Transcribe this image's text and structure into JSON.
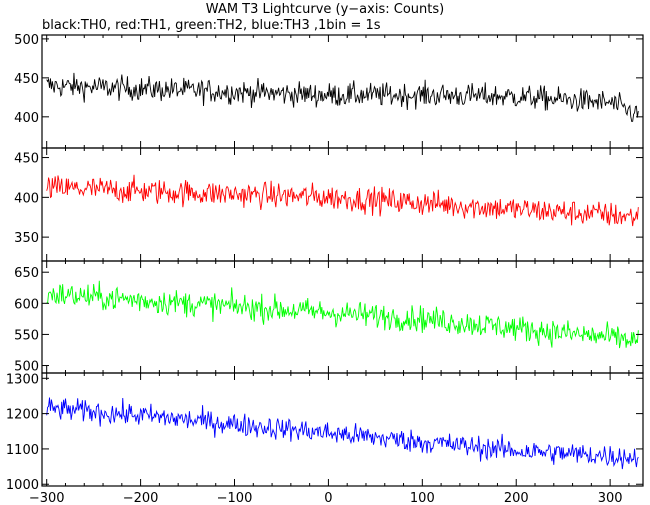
{
  "title": "WAM T3 Lightcurve (y−axis: Counts)",
  "subtitle": "black:TH0, red:TH1, green:TH2, blue:TH3 ,1bin = 1s",
  "chart_data": {
    "type": "line",
    "title": "WAM T3 Lightcurve (y−axis: Counts)",
    "subtitle": "black:TH0, red:TH1, green:TH2, blue:TH3 ,1bin = 1s",
    "ylabel": "Counts",
    "bin_seconds": 1,
    "xlim": [
      -305,
      335
    ],
    "x_ticks": [
      -300,
      -200,
      -100,
      0,
      100,
      200,
      300
    ],
    "x_tick_labels": [
      "−300",
      "−200",
      "−100",
      "0",
      "100",
      "200",
      "300"
    ],
    "panels": [
      {
        "name": "TH0",
        "color": "#000000",
        "ylim": [
          360,
          505
        ],
        "y_ticks": [
          400,
          450,
          500
        ],
        "y_tick_labels": [
          "400",
          "450",
          "500"
        ],
        "trend": {
          "x": [
            -300,
            -200,
            -100,
            0,
            100,
            200,
            300,
            330
          ],
          "y": [
            440,
            436,
            432,
            428,
            428,
            426,
            418,
            402
          ]
        },
        "noise_amplitude": 20
      },
      {
        "name": "TH1",
        "color": "#ff0000",
        "ylim": [
          320,
          462
        ],
        "y_ticks": [
          350,
          400,
          450
        ],
        "y_tick_labels": [
          "350",
          "400",
          "450"
        ],
        "trend": {
          "x": [
            -300,
            -200,
            -100,
            0,
            100,
            200,
            300,
            330
          ],
          "y": [
            412,
            408,
            404,
            400,
            393,
            385,
            378,
            375
          ]
        },
        "noise_amplitude": 21
      },
      {
        "name": "TH2",
        "color": "#00ff00",
        "ylim": [
          488,
          668
        ],
        "y_ticks": [
          500,
          550,
          600,
          650
        ],
        "y_tick_labels": [
          "500",
          "550",
          "600",
          "650"
        ],
        "trend": {
          "x": [
            -300,
            -200,
            -100,
            0,
            100,
            200,
            300,
            330
          ],
          "y": [
            615,
            605,
            595,
            585,
            575,
            560,
            545,
            540
          ]
        },
        "noise_amplitude": 27
      },
      {
        "name": "TH3",
        "color": "#0000ff",
        "ylim": [
          995,
          1315
        ],
        "y_ticks": [
          1000,
          1100,
          1200,
          1300
        ],
        "y_tick_labels": [
          "1000",
          "1100",
          "1200",
          "1300"
        ],
        "trend": {
          "x": [
            -300,
            -200,
            -100,
            0,
            100,
            200,
            300,
            330
          ],
          "y": [
            1215,
            1195,
            1170,
            1145,
            1120,
            1095,
            1080,
            1075
          ]
        },
        "noise_amplitude": 42
      }
    ],
    "grid": false,
    "legend": "none"
  }
}
